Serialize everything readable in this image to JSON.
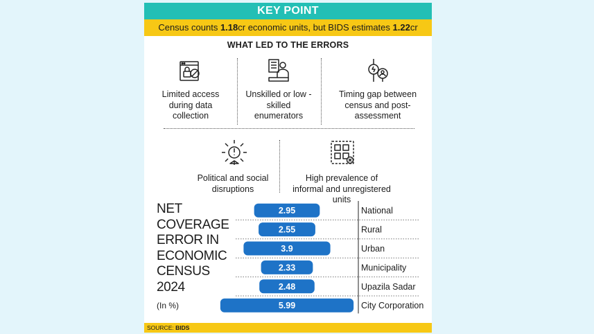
{
  "key_point": {
    "title": "KEY POINT",
    "text_prefix": "Census counts ",
    "val1": "1.18",
    "text_mid": "cr economic units, but BIDS estimates ",
    "val2": "1.22",
    "text_suffix": "cr"
  },
  "errors": {
    "title": "WHAT LED TO THE ERRORS",
    "items": [
      {
        "icon": "locked-data-icon",
        "label": "Limited access during data collection"
      },
      {
        "icon": "enumerator-icon",
        "label": "Unskilled or low -skilled enumerators"
      },
      {
        "icon": "timing-gap-icon",
        "label": "Timing gap between census and post-assessment"
      },
      {
        "icon": "disruption-icon",
        "label": "Political and social disruptions"
      },
      {
        "icon": "informal-units-icon",
        "label": "High prevalence of informal and unregistered units"
      }
    ]
  },
  "chart_data": {
    "type": "bar",
    "title": "NET COVERAGE ERROR IN ECONOMIC CENSUS 2024",
    "unit": "(In %)",
    "categories": [
      "National",
      "Rural",
      "Urban",
      "Municipality",
      "Upazila Sadar",
      "City Corporation"
    ],
    "values": [
      2.95,
      2.55,
      3.9,
      2.33,
      2.48,
      5.99
    ],
    "value_labels": [
      "2.95",
      "2.55",
      "3.9",
      "2.33",
      "2.48",
      "5.99"
    ],
    "colors": {
      "bar": "#1e73c7",
      "label": "#ffffff"
    }
  },
  "source": {
    "label": "SOURCE: ",
    "name": "BIDS"
  }
}
